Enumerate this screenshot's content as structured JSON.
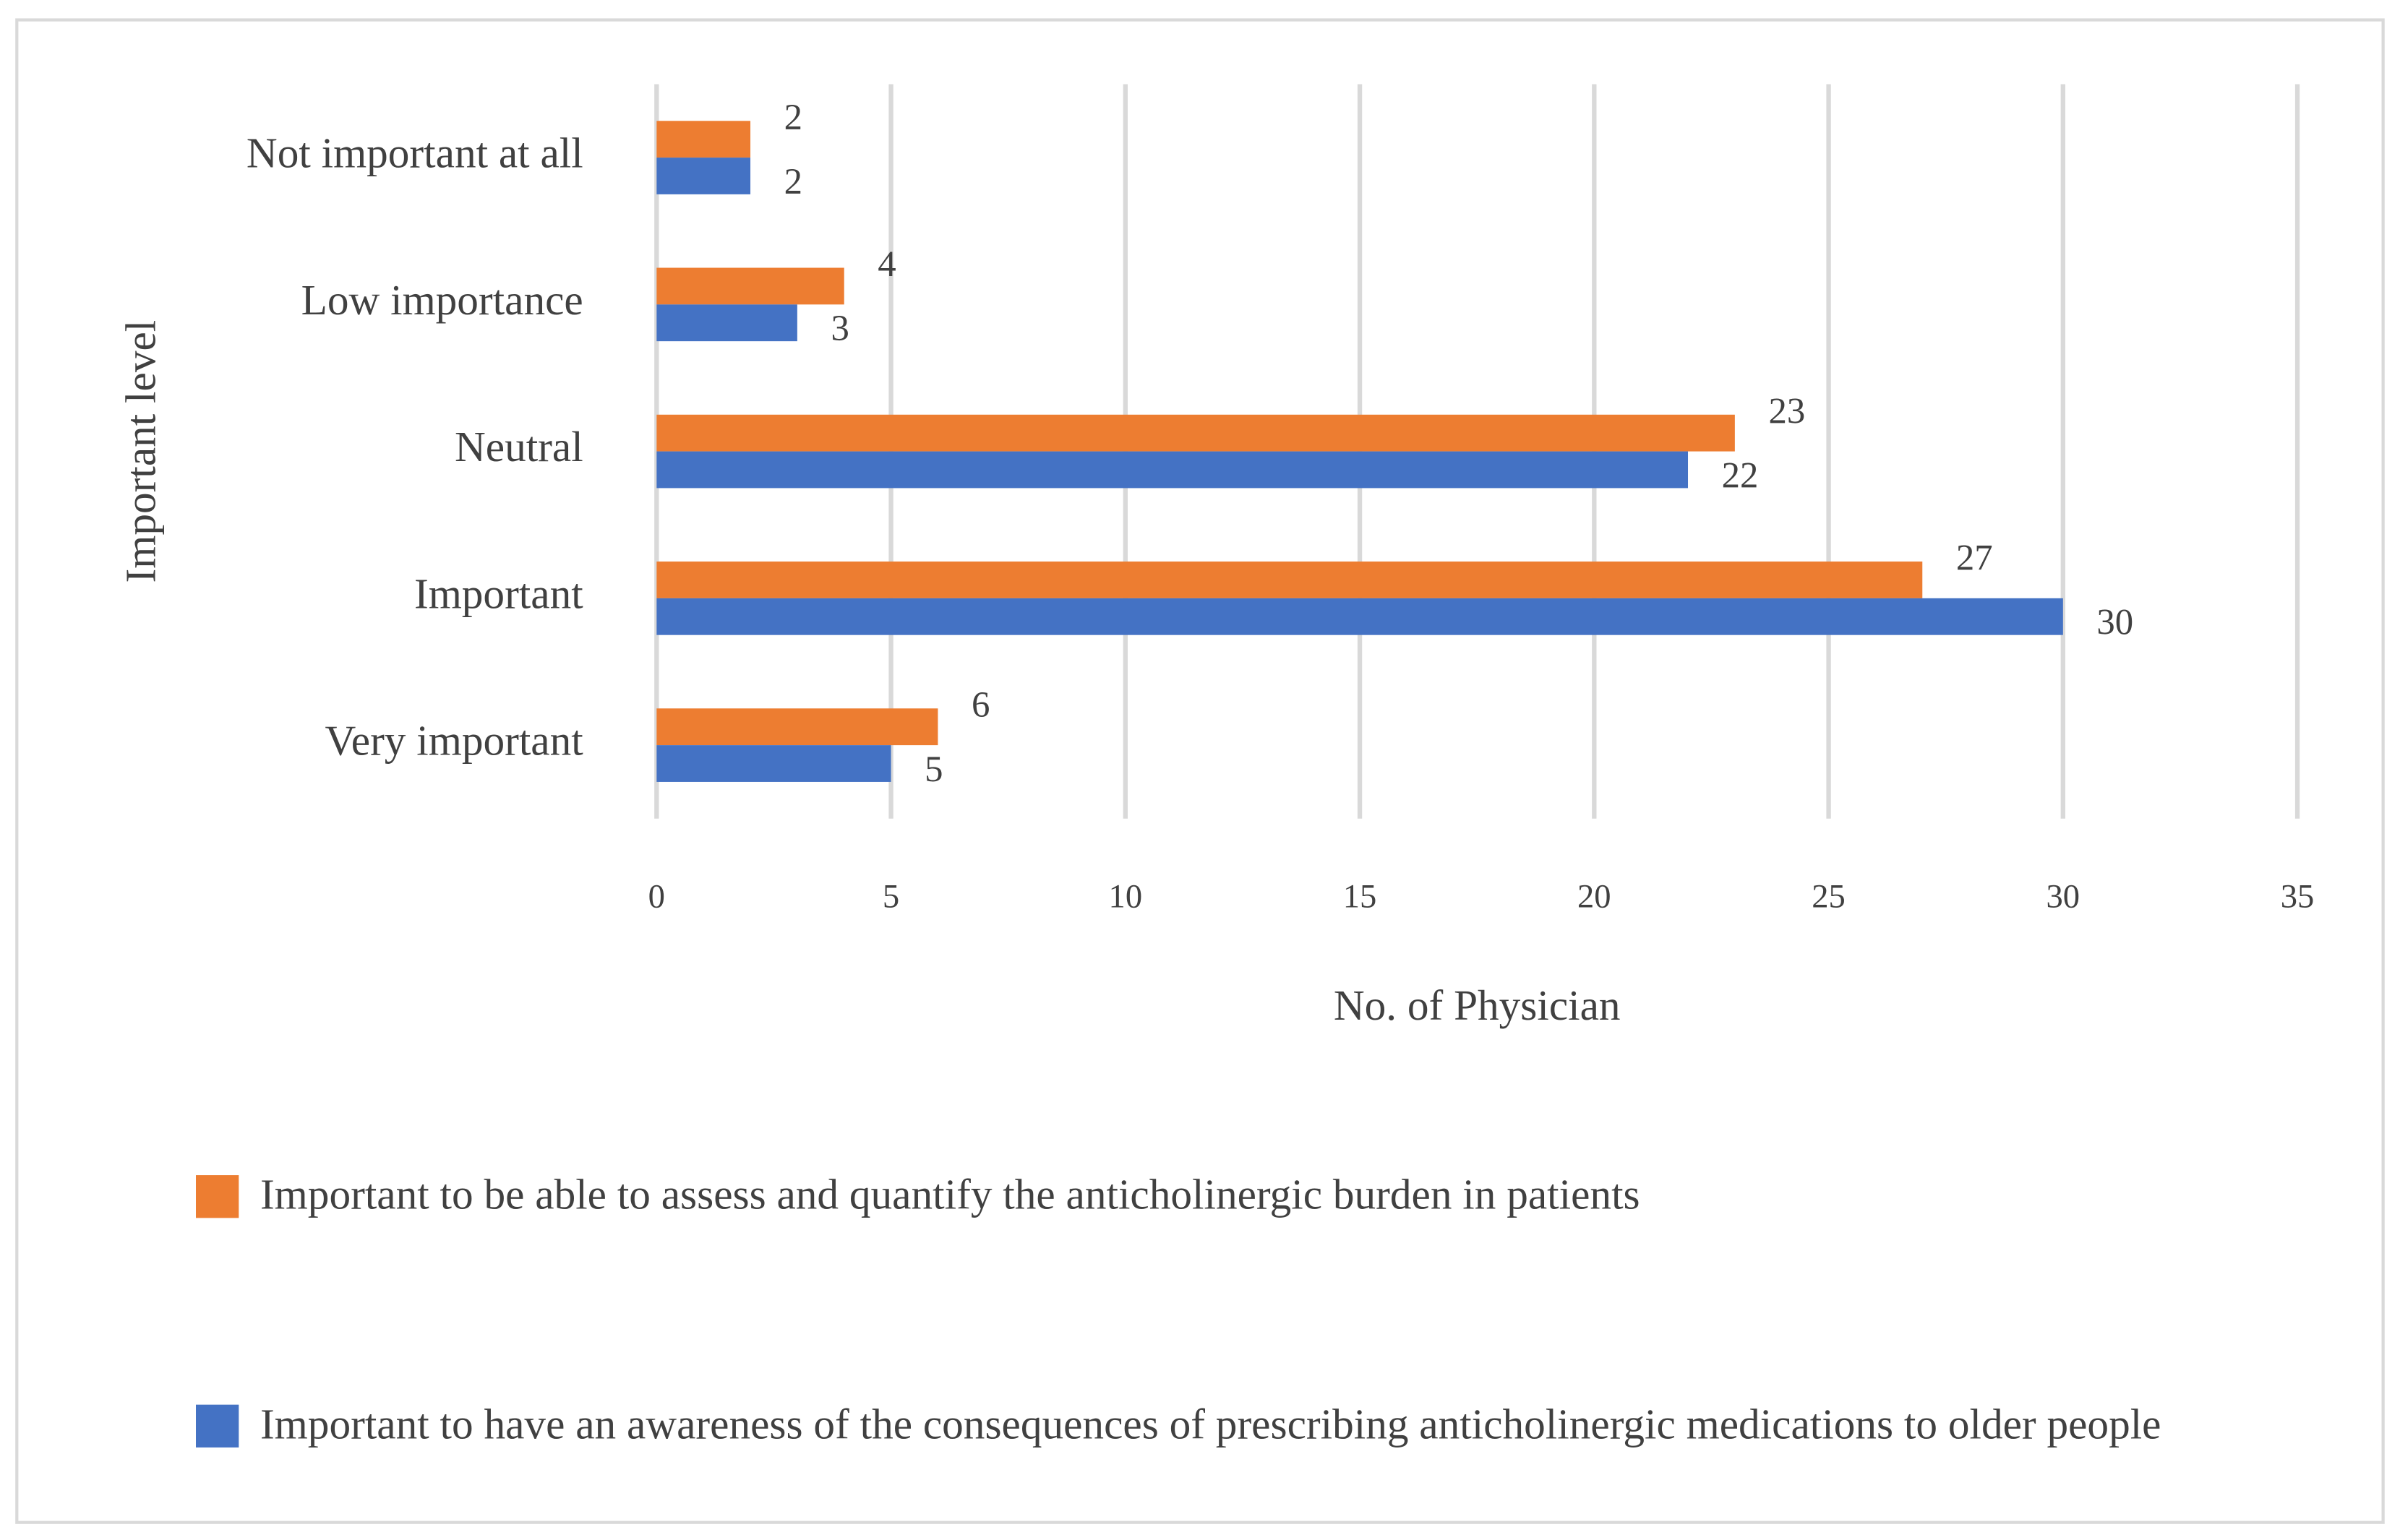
{
  "chart_data": {
    "type": "bar",
    "orientation": "horizontal",
    "y_label": "Important level",
    "x_label": "No. of Physician",
    "categories": [
      "Not important at all",
      "Low importance",
      "Neutral",
      "Important",
      "Very important"
    ],
    "series": [
      {
        "name": "Important to be able to assess and quantify the anticholinergic burden in patients",
        "color": "#ed7d31",
        "values": [
          2,
          4,
          23,
          27,
          6
        ]
      },
      {
        "name": "Important to have an awareness of the consequences of prescribing anticholinergic medications to older people",
        "color": "#4472c4",
        "values": [
          2,
          3,
          22,
          30,
          5
        ]
      }
    ],
    "xlim": [
      0,
      35
    ],
    "xticks": [
      0,
      5,
      10,
      15,
      20,
      25,
      30,
      35
    ],
    "grid": true
  }
}
